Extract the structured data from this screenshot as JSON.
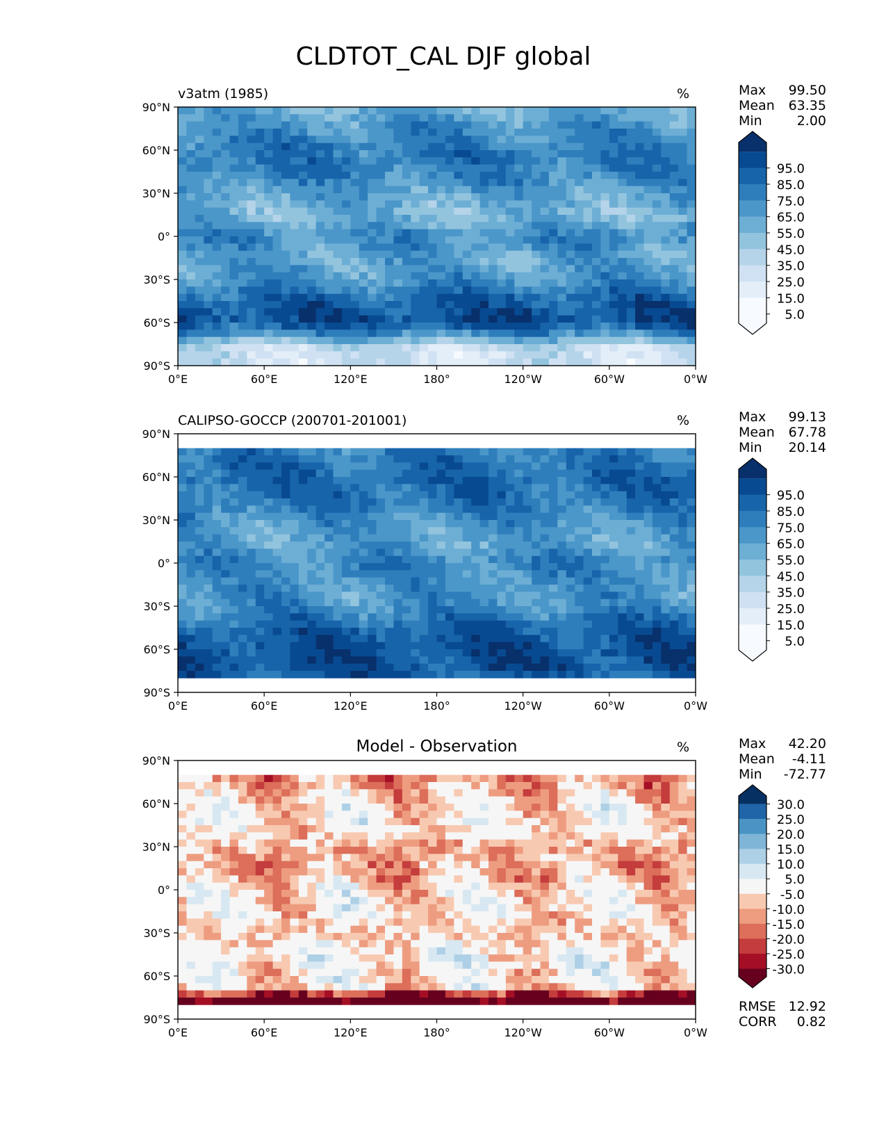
{
  "figure_title": "CLDTOT_CAL DJF global",
  "chart_data": [
    {
      "type": "heatmap",
      "panel": "model",
      "title_left": "v3atm (1985)",
      "title_center": "",
      "units": "%",
      "stats": {
        "labels": [
          "Max",
          "Mean",
          "Min"
        ],
        "values": [
          "99.50",
          "63.35",
          "2.00"
        ]
      },
      "colorbar": {
        "tick_labels": [
          "5.0",
          "15.0",
          "25.0",
          "35.0",
          "45.0",
          "55.0",
          "65.0",
          "75.0",
          "85.0",
          "95.0"
        ],
        "colors": [
          "#f7fbff",
          "#f7fbff",
          "#e3eef9",
          "#cfe1f2",
          "#b5d4e9",
          "#93c4de",
          "#6daed5",
          "#4b97c9",
          "#2f7ebc",
          "#1764ab",
          "#084a91",
          "#08306b"
        ]
      },
      "xticks": [
        "0°E",
        "60°E",
        "120°E",
        "180°",
        "120°W",
        "60°W",
        "0°W"
      ],
      "yticks": [
        "90°N",
        "60°N",
        "30°N",
        "0°",
        "30°S",
        "60°S",
        "90°S"
      ],
      "lat_coverage": [
        -90,
        90
      ],
      "zonal_mean": [
        [
          -90,
          20
        ],
        [
          -78,
          22
        ],
        [
          -70,
          55
        ],
        [
          -60,
          90
        ],
        [
          -45,
          82
        ],
        [
          -30,
          60
        ],
        [
          -15,
          55
        ],
        [
          0,
          65
        ],
        [
          15,
          45
        ],
        [
          30,
          55
        ],
        [
          45,
          70
        ],
        [
          60,
          72
        ],
        [
          75,
          62
        ],
        [
          90,
          50
        ]
      ]
    },
    {
      "type": "heatmap",
      "panel": "observation",
      "title_left": "CALIPSO-GOCCP (200701-201001)",
      "title_center": "",
      "units": "%",
      "stats": {
        "labels": [
          "Max",
          "Mean",
          "Min"
        ],
        "values": [
          "99.13",
          "67.78",
          "20.14"
        ]
      },
      "colorbar": {
        "tick_labels": [
          "5.0",
          "15.0",
          "25.0",
          "35.0",
          "45.0",
          "55.0",
          "65.0",
          "75.0",
          "85.0",
          "95.0"
        ],
        "colors": [
          "#f7fbff",
          "#f7fbff",
          "#e3eef9",
          "#cfe1f2",
          "#b5d4e9",
          "#93c4de",
          "#6daed5",
          "#4b97c9",
          "#2f7ebc",
          "#1764ab",
          "#084a91",
          "#08306b"
        ]
      },
      "xticks": [
        "0°E",
        "60°E",
        "120°E",
        "180°",
        "120°W",
        "60°W",
        "0°W"
      ],
      "yticks": [
        "90°N",
        "60°N",
        "30°N",
        "0°",
        "30°S",
        "60°S",
        "90°S"
      ],
      "lat_coverage": [
        -82,
        82
      ],
      "zonal_mean": [
        [
          -82,
          80
        ],
        [
          -70,
          88
        ],
        [
          -60,
          88
        ],
        [
          -45,
          80
        ],
        [
          -30,
          62
        ],
        [
          -15,
          60
        ],
        [
          0,
          68
        ],
        [
          15,
          55
        ],
        [
          30,
          62
        ],
        [
          45,
          75
        ],
        [
          60,
          78
        ],
        [
          75,
          72
        ],
        [
          82,
          70
        ]
      ]
    },
    {
      "type": "heatmap",
      "panel": "difference",
      "title_left": "",
      "title_center": "Model - Observation",
      "units": "%",
      "stats": {
        "labels": [
          "Max",
          "Mean",
          "Min"
        ],
        "values": [
          "42.20",
          "-4.11",
          "-72.77"
        ]
      },
      "colorbar": {
        "tick_labels": [
          "-30.0",
          "-25.0",
          "-20.0",
          "-15.0",
          "-10.0",
          "-5.0",
          "5.0",
          "10.0",
          "15.0",
          "20.0",
          "25.0",
          "30.0"
        ],
        "colors": [
          "#67001f",
          "#a50f26",
          "#c43c3c",
          "#dc6e5a",
          "#ee9c80",
          "#f8c9b1",
          "#f6f6f6",
          "#d8e8f2",
          "#aed0e6",
          "#7fb5d7",
          "#4994c4",
          "#1f65a8",
          "#053061"
        ]
      },
      "extra_stats": {
        "labels": [
          "RMSE",
          "CORR"
        ],
        "values": [
          "12.92",
          "0.82"
        ]
      },
      "xticks": [
        "0°E",
        "60°E",
        "120°E",
        "180°",
        "120°W",
        "60°W",
        "0°W"
      ],
      "yticks": [
        "90°N",
        "60°N",
        "30°N",
        "0°",
        "30°S",
        "60°S",
        "90°S"
      ],
      "lat_coverage": [
        -82,
        82
      ],
      "zonal_mean": [
        [
          -82,
          -40
        ],
        [
          -75,
          -35
        ],
        [
          -68,
          -5
        ],
        [
          -45,
          0
        ],
        [
          -30,
          -8
        ],
        [
          -15,
          -3
        ],
        [
          0,
          -5
        ],
        [
          15,
          -12
        ],
        [
          30,
          -10
        ],
        [
          45,
          -3
        ],
        [
          60,
          -5
        ],
        [
          75,
          -12
        ],
        [
          82,
          -15
        ]
      ]
    }
  ]
}
